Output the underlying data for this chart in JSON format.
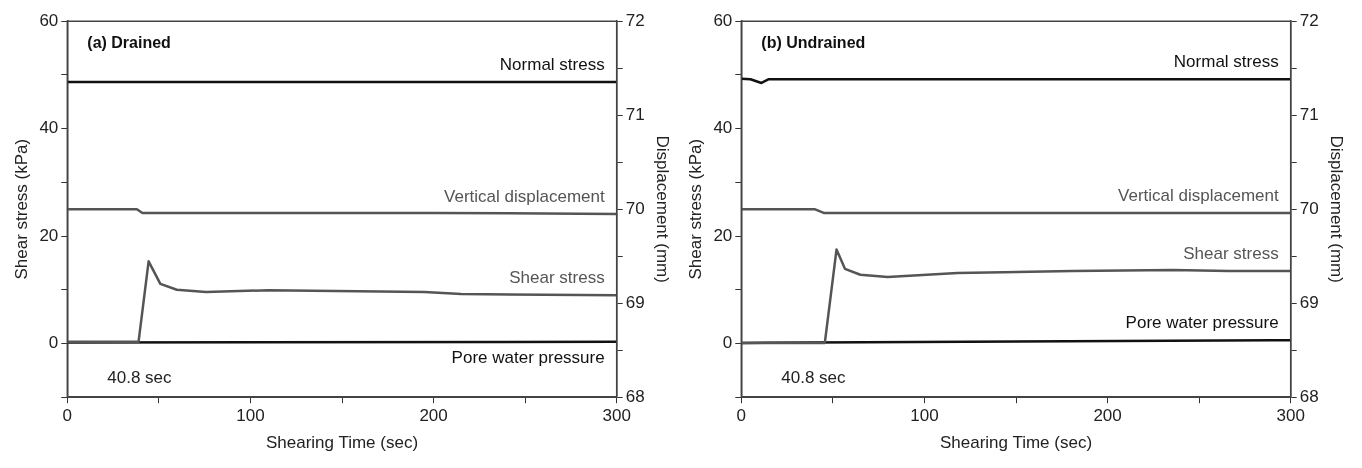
{
  "chart_data": [
    {
      "type": "line",
      "title": "(a) Drained",
      "xlabel": "Shearing Time (sec)",
      "ylabel": "Shear stress (kPa)",
      "y2label": "Displacement (mm)",
      "annotations": [
        "40.8 sec"
      ],
      "xlim": [
        0,
        300
      ],
      "xticks": [
        0,
        {
          "value": 50,
          "label": null
        },
        100,
        {
          "value": 150,
          "label": null
        },
        200,
        {
          "value": 250,
          "label": null
        },
        300
      ],
      "ylim": [
        -10,
        60
      ],
      "yticks": [
        {
          "value": -10,
          "label": null
        },
        0,
        {
          "value": 10,
          "label": null
        },
        20,
        {
          "value": 30,
          "label": null
        },
        40,
        {
          "value": 50,
          "label": null
        },
        60
      ],
      "y2lim": [
        68,
        72
      ],
      "y2ticks": [
        68,
        {
          "value": 68.5,
          "label": null
        },
        69,
        {
          "value": 69.5,
          "label": null
        },
        70,
        {
          "value": 70.5,
          "label": null
        },
        71,
        {
          "value": 71.5,
          "label": null
        },
        72
      ],
      "legend": false,
      "grid": false,
      "marker": "none",
      "series": [
        {
          "name": "Normal stress",
          "color": "#111111",
          "x": [
            0,
            300
          ],
          "values": [
            48.7,
            48.7
          ]
        },
        {
          "name": "Vertical displacement",
          "color": "#555555",
          "axis": "y2",
          "x": [
            0,
            38,
            41,
            100,
            200,
            300
          ],
          "values": [
            70.0,
            70.0,
            69.96,
            69.96,
            69.96,
            69.95
          ]
        },
        {
          "name": "Shear stress",
          "color": "#555555",
          "x": [
            0,
            38.9,
            44.4,
            50.8,
            59.8,
            75.7,
            109.6,
            195,
            215,
            300
          ],
          "values": [
            0.3,
            0.3,
            15.3,
            11.1,
            10.0,
            9.6,
            9.9,
            9.6,
            9.2,
            9.0
          ]
        },
        {
          "name": "Pore water pressure",
          "color": "#111111",
          "x": [
            0,
            300
          ],
          "values": [
            0.2,
            0.3
          ]
        }
      ]
    },
    {
      "type": "line",
      "title": "(b) Undrained",
      "xlabel": "Shearing Time (sec)",
      "ylabel": "Shear stress (kPa)",
      "y2label": "Displacement (mm)",
      "annotations": [
        "40.8 sec"
      ],
      "xlim": [
        0,
        300
      ],
      "xticks": [
        0,
        {
          "value": 50,
          "label": null
        },
        100,
        {
          "value": 150,
          "label": null
        },
        200,
        {
          "value": 250,
          "label": null
        },
        300
      ],
      "ylim": [
        -10,
        60
      ],
      "yticks": [
        {
          "value": -10,
          "label": null
        },
        0,
        {
          "value": 10,
          "label": null
        },
        20,
        {
          "value": 30,
          "label": null
        },
        40,
        {
          "value": 50,
          "label": null
        },
        60
      ],
      "y2lim": [
        68,
        72
      ],
      "y2ticks": [
        68,
        {
          "value": 68.5,
          "label": null
        },
        69,
        {
          "value": 69.5,
          "label": null
        },
        70,
        {
          "value": 70.5,
          "label": null
        },
        71,
        {
          "value": 71.5,
          "label": null
        },
        72
      ],
      "legend": false,
      "grid": false,
      "marker": "none",
      "series": [
        {
          "name": "Normal stress",
          "color": "#111111",
          "x": [
            0,
            5,
            11,
            15,
            300
          ],
          "values": [
            49.3,
            49.2,
            48.5,
            49.2,
            49.2
          ]
        },
        {
          "name": "Vertical displacement",
          "color": "#555555",
          "axis": "y2",
          "x": [
            0,
            40,
            45,
            100,
            200,
            300
          ],
          "values": [
            70.0,
            70.0,
            69.96,
            69.96,
            69.96,
            69.96
          ]
        },
        {
          "name": "Shear stress",
          "color": "#555555",
          "x": [
            0,
            45.6,
            52,
            56.6,
            65,
            79.9,
            118,
            181,
            236,
            266,
            300
          ],
          "values": [
            0.1,
            0.1,
            17.5,
            13.9,
            12.8,
            12.4,
            13.1,
            13.5,
            13.7,
            13.5,
            13.5
          ]
        },
        {
          "name": "Pore water pressure",
          "color": "#111111",
          "x": [
            0,
            300
          ],
          "values": [
            0.1,
            0.6
          ]
        }
      ]
    }
  ]
}
